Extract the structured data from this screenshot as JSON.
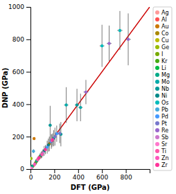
{
  "chart_data": {
    "type": "scatter",
    "xlabel": "DFT (GPa)",
    "ylabel": "DNP (GPa)",
    "xlim": [
      0,
      1000
    ],
    "ylim": [
      0,
      1000
    ],
    "xticks": [
      0,
      200,
      400,
      600,
      800
    ],
    "yticks": [
      0,
      200,
      400,
      600,
      800,
      1000
    ],
    "grid": false,
    "legend": "right",
    "parity_line": {
      "x": [
        0,
        1000
      ],
      "y": [
        0,
        1000
      ],
      "color": "#cc0000"
    },
    "series": [
      {
        "name": "Ag",
        "color": "#ff9999",
        "x": [
          10,
          28
        ],
        "values": [
          8,
          22
        ],
        "xerr": [
          4,
          6
        ],
        "yerr": [
          5,
          6
        ]
      },
      {
        "name": "Al",
        "color": "#ff5050",
        "x": [
          20,
          42
        ],
        "values": [
          18,
          38
        ],
        "xerr": [
          5,
          7
        ],
        "yerr": [
          6,
          10
        ]
      },
      {
        "name": "Au",
        "color": "#cc7700",
        "x": [
          30
        ],
        "values": [
          188
        ],
        "xerr": [
          6
        ],
        "yerr": [
          8
        ]
      },
      {
        "name": "Co",
        "color": "#aa8800",
        "x": [
          48,
          158
        ],
        "values": [
          45,
          155
        ],
        "xerr": [
          8,
          12
        ],
        "yerr": [
          12,
          45
        ]
      },
      {
        "name": "Cu",
        "color": "#bbbb00",
        "x": [
          55,
          80
        ],
        "values": [
          55,
          78
        ],
        "xerr": [
          8,
          10
        ],
        "yerr": [
          12,
          18
        ]
      },
      {
        "name": "Ge",
        "color": "#99bb00",
        "x": [
          5
        ],
        "values": [
          65
        ],
        "xerr": [
          3
        ],
        "yerr": [
          5
        ]
      },
      {
        "name": "I",
        "color": "#77aa00",
        "x": [
          3
        ],
        "values": [
          5
        ],
        "xerr": [
          2
        ],
        "yerr": [
          3
        ]
      },
      {
        "name": "Kr",
        "color": "#44aa11",
        "x": [
          2
        ],
        "values": [
          3
        ],
        "xerr": [
          1
        ],
        "yerr": [
          2
        ]
      },
      {
        "name": "Li",
        "color": "#00bb44",
        "x": [
          12,
          38
        ],
        "values": [
          12,
          32
        ],
        "xerr": [
          4,
          6
        ],
        "yerr": [
          5,
          8
        ]
      },
      {
        "name": "Mg",
        "color": "#00aa88",
        "x": [
          15,
          52
        ],
        "values": [
          18,
          50
        ],
        "xerr": [
          4,
          7
        ],
        "yerr": [
          6,
          10
        ]
      },
      {
        "name": "Mo",
        "color": "#00aaaa",
        "x": [
          195,
          300,
          420
        ],
        "values": [
          190,
          395,
          380
        ],
        "xerr": [
          14,
          18,
          18
        ],
        "yerr": [
          50,
          110,
          85
        ]
      },
      {
        "name": "Nb",
        "color": "#009999",
        "x": [
          165,
          255,
          390
        ],
        "values": [
          270,
          215,
          395
        ],
        "xerr": [
          14,
          14,
          18
        ],
        "yerr": [
          120,
          75,
          100
        ]
      },
      {
        "name": "Ni",
        "color": "#008888",
        "x": [
          88,
          115,
          150
        ],
        "values": [
          85,
          112,
          148
        ],
        "xerr": [
          10,
          12,
          12
        ],
        "yerr": [
          20,
          30,
          40
        ]
      },
      {
        "name": "Os",
        "color": "#00bbbb",
        "x": [
          600,
          750
        ],
        "values": [
          760,
          855
        ],
        "xerr": [
          20,
          22
        ],
        "yerr": [
          130,
          120
        ]
      },
      {
        "name": "Pb",
        "color": "#44aadd",
        "x": [
          25
        ],
        "values": [
          110
        ],
        "xerr": [
          6
        ],
        "yerr": [
          12
        ]
      },
      {
        "name": "Pd",
        "color": "#4499ff",
        "x": [
          140,
          175,
          220
        ],
        "values": [
          135,
          170,
          218
        ],
        "xerr": [
          12,
          12,
          14
        ],
        "yerr": [
          40,
          45,
          50
        ]
      },
      {
        "name": "Pt",
        "color": "#7777cc",
        "x": [
          205,
          245
        ],
        "values": [
          200,
          220
        ],
        "xerr": [
          14,
          14
        ],
        "yerr": [
          55,
          60
        ]
      },
      {
        "name": "Re",
        "color": "#9966cc",
        "x": [
          465,
          660,
          820
        ],
        "values": [
          475,
          775,
          800
        ],
        "xerr": [
          20,
          20,
          22
        ],
        "yerr": [
          75,
          110,
          160
        ]
      },
      {
        "name": "Sb",
        "color": "#cc77cc",
        "x": [
          65,
          105
        ],
        "values": [
          65,
          100
        ],
        "xerr": [
          8,
          10
        ],
        "yerr": [
          15,
          22
        ]
      },
      {
        "name": "Sr",
        "color": "#ff77cc",
        "x": [
          5,
          8
        ],
        "values": [
          4,
          6
        ],
        "xerr": [
          2,
          3
        ],
        "yerr": [
          3,
          4
        ]
      },
      {
        "name": "Ti",
        "color": "#ff55aa",
        "x": [
          60,
          95,
          180
        ],
        "values": [
          58,
          90,
          175
        ],
        "xerr": [
          8,
          10,
          12
        ],
        "yerr": [
          12,
          22,
          40
        ]
      },
      {
        "name": "Zn",
        "color": "#ff55bb",
        "x": [
          35
        ],
        "values": [
          30
        ],
        "xerr": [
          6
        ],
        "yerr": [
          10
        ]
      },
      {
        "name": "Zr",
        "color": "#ff3399",
        "x": [
          72,
          125,
          185
        ],
        "values": [
          70,
          120,
          182
        ],
        "xerr": [
          8,
          12,
          12
        ],
        "yerr": [
          15,
          28,
          38
        ]
      }
    ]
  }
}
